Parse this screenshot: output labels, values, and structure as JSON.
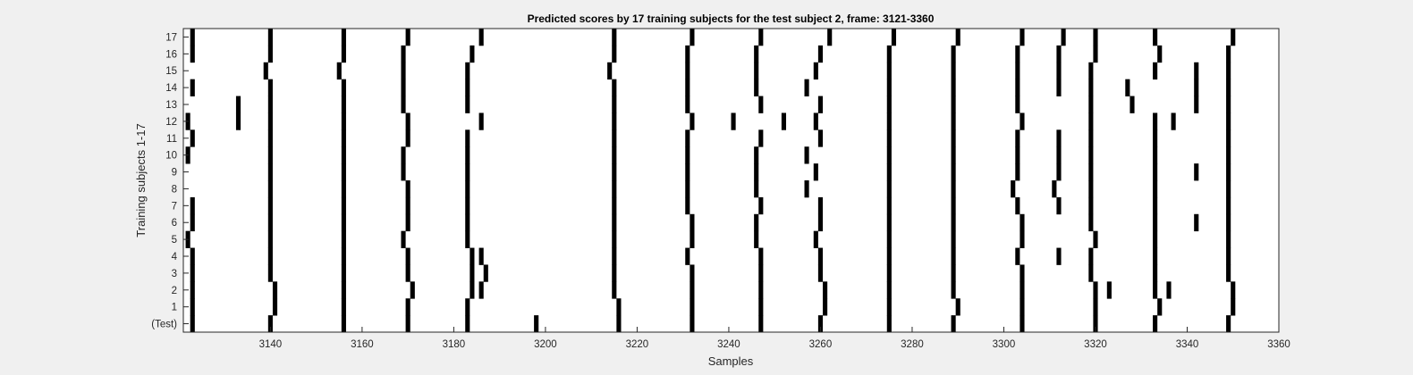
{
  "chart_data": {
    "type": "heatmap",
    "title": "Predicted scores by 17 training subjects for the test subject 2, frame: 3121-3360",
    "xlabel": "Samples",
    "ylabel": "Training subjects 1-17",
    "xlim": [
      3121,
      3360
    ],
    "x_ticks": [
      3140,
      3160,
      3180,
      3200,
      3220,
      3240,
      3260,
      3280,
      3300,
      3320,
      3340,
      3360
    ],
    "y_tick_labels": [
      "(Test)",
      "1",
      "2",
      "3",
      "4",
      "5",
      "6",
      "7",
      "8",
      "9",
      "10",
      "11",
      "12",
      "13",
      "14",
      "15",
      "16",
      "17"
    ],
    "background_color": "#ffffff",
    "mark_color": "#000000",
    "grid": false,
    "rows": [
      {
        "label": "(Test)",
        "x": [
          3123,
          3140,
          3156,
          3170,
          3183,
          3198,
          3216,
          3232,
          3247,
          3260,
          3275,
          3289,
          3304,
          3320,
          3333,
          3349
        ]
      },
      {
        "label": "1",
        "x": [
          3123,
          3141,
          3156,
          3170,
          3183,
          3216,
          3232,
          3247,
          3261,
          3275,
          3290,
          3304,
          3320,
          3334,
          3350
        ]
      },
      {
        "label": "2",
        "x": [
          3123,
          3141,
          3156,
          3171,
          3184,
          3186,
          3215,
          3232,
          3247,
          3261,
          3275,
          3289,
          3304,
          3320,
          3323,
          3333,
          3336,
          3350
        ]
      },
      {
        "label": "3",
        "x": [
          3123,
          3140,
          3156,
          3170,
          3184,
          3187,
          3215,
          3232,
          3247,
          3260,
          3275,
          3289,
          3304,
          3319,
          3333,
          3349
        ]
      },
      {
        "label": "4",
        "x": [
          3123,
          3140,
          3156,
          3170,
          3184,
          3186,
          3215,
          3231,
          3247,
          3260,
          3275,
          3289,
          3303,
          3312,
          3319,
          3333,
          3349
        ]
      },
      {
        "label": "5",
        "x": [
          3122,
          3140,
          3156,
          3169,
          3183,
          3215,
          3232,
          3246,
          3259,
          3275,
          3289,
          3304,
          3320,
          3333,
          3349
        ]
      },
      {
        "label": "6",
        "x": [
          3123,
          3140,
          3156,
          3170,
          3183,
          3215,
          3232,
          3246,
          3260,
          3275,
          3289,
          3304,
          3319,
          3333,
          3342,
          3349
        ]
      },
      {
        "label": "7",
        "x": [
          3123,
          3140,
          3156,
          3170,
          3183,
          3215,
          3231,
          3247,
          3260,
          3275,
          3289,
          3303,
          3312,
          3319,
          3333,
          3349
        ]
      },
      {
        "label": "8",
        "x": [
          3140,
          3156,
          3170,
          3183,
          3215,
          3231,
          3246,
          3257,
          3275,
          3289,
          3302,
          3311,
          3319,
          3333,
          3349
        ]
      },
      {
        "label": "9",
        "x": [
          3140,
          3156,
          3169,
          3183,
          3215,
          3231,
          3246,
          3259,
          3275,
          3289,
          3303,
          3312,
          3319,
          3333,
          3342,
          3349
        ]
      },
      {
        "label": "10",
        "x": [
          3122,
          3140,
          3156,
          3169,
          3183,
          3215,
          3231,
          3246,
          3257,
          3275,
          3289,
          3303,
          3312,
          3319,
          3333,
          3349
        ]
      },
      {
        "label": "11",
        "x": [
          3123,
          3140,
          3156,
          3170,
          3183,
          3215,
          3231,
          3247,
          3260,
          3275,
          3289,
          3303,
          3312,
          3319,
          3333,
          3349
        ]
      },
      {
        "label": "12",
        "x": [
          3122,
          3133,
          3140,
          3156,
          3170,
          3186,
          3215,
          3232,
          3241,
          3252,
          3259,
          3275,
          3289,
          3304,
          3319,
          3333,
          3337,
          3349
        ]
      },
      {
        "label": "13",
        "x": [
          3133,
          3140,
          3156,
          3169,
          3183,
          3215,
          3231,
          3247,
          3260,
          3275,
          3289,
          3303,
          3319,
          3328,
          3342,
          3349
        ]
      },
      {
        "label": "14",
        "x": [
          3123,
          3140,
          3156,
          3169,
          3183,
          3215,
          3231,
          3246,
          3257,
          3275,
          3289,
          3303,
          3312,
          3319,
          3327,
          3342,
          3349
        ]
      },
      {
        "label": "15",
        "x": [
          3139,
          3155,
          3169,
          3183,
          3214,
          3231,
          3246,
          3259,
          3275,
          3289,
          3303,
          3312,
          3319,
          3333,
          3342,
          3349
        ]
      },
      {
        "label": "16",
        "x": [
          3123,
          3140,
          3156,
          3169,
          3184,
          3215,
          3231,
          3246,
          3260,
          3275,
          3289,
          3303,
          3312,
          3320,
          3334,
          3349
        ]
      },
      {
        "label": "17",
        "x": [
          3123,
          3140,
          3156,
          3170,
          3186,
          3215,
          3232,
          3247,
          3262,
          3276,
          3290,
          3304,
          3313,
          3320,
          3333,
          3350
        ]
      }
    ]
  }
}
